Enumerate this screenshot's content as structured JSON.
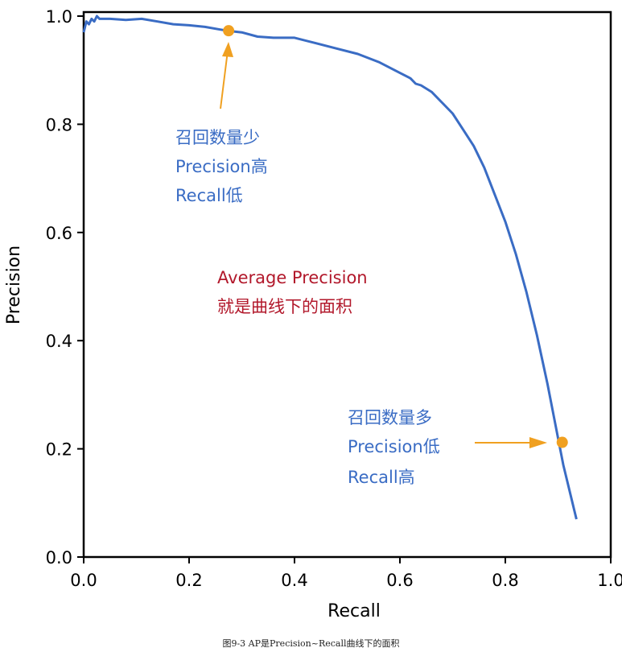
{
  "chart_data": {
    "type": "line",
    "title": "",
    "xlabel": "Recall",
    "ylabel": "Precision",
    "xlim": [
      0.0,
      1.0
    ],
    "ylim": [
      0.0,
      1.0
    ],
    "x_ticks": [
      "0.0",
      "0.2",
      "0.4",
      "0.6",
      "0.8",
      "1.0"
    ],
    "y_ticks": [
      "0.0",
      "0.2",
      "0.4",
      "0.6",
      "0.8",
      "1.0"
    ],
    "grid": false,
    "series": [
      {
        "color": "#3a6cc4",
        "x": [
          0.0,
          0.005,
          0.01,
          0.015,
          0.02,
          0.025,
          0.03,
          0.05,
          0.08,
          0.11,
          0.14,
          0.17,
          0.2,
          0.23,
          0.26,
          0.28,
          0.3,
          0.33,
          0.36,
          0.4,
          0.44,
          0.48,
          0.52,
          0.56,
          0.6,
          0.62,
          0.63,
          0.64,
          0.66,
          0.68,
          0.7,
          0.72,
          0.74,
          0.76,
          0.78,
          0.8,
          0.82,
          0.84,
          0.86,
          0.88,
          0.9,
          0.91,
          0.92,
          0.93,
          0.935
        ],
        "y": [
          0.97,
          0.99,
          0.985,
          0.995,
          0.99,
          1.0,
          0.995,
          0.995,
          0.993,
          0.995,
          0.99,
          0.985,
          0.983,
          0.98,
          0.975,
          0.972,
          0.97,
          0.962,
          0.96,
          0.96,
          0.95,
          0.94,
          0.93,
          0.915,
          0.895,
          0.885,
          0.875,
          0.872,
          0.86,
          0.84,
          0.82,
          0.79,
          0.76,
          0.72,
          0.67,
          0.62,
          0.56,
          0.49,
          0.41,
          0.32,
          0.22,
          0.17,
          0.13,
          0.09,
          0.07
        ]
      }
    ],
    "highlight_points": [
      {
        "x": 0.275,
        "y": 0.973,
        "color": "#f0a020"
      },
      {
        "x": 0.908,
        "y": 0.212,
        "color": "#f0a020"
      }
    ],
    "annotations": [
      {
        "lines": [
          "召回数量少",
          "Precision高",
          "Recall低"
        ],
        "color": "#3a6cc4"
      },
      {
        "lines": [
          "Average Precision",
          "就是曲线下的面积"
        ],
        "color": "#b2182b"
      },
      {
        "lines": [
          "召回数量多",
          "Precision低",
          "Recall高"
        ],
        "color": "#3a6cc4"
      }
    ]
  },
  "caption": "图9-3 AP是Precision~Recall曲线下的面积"
}
